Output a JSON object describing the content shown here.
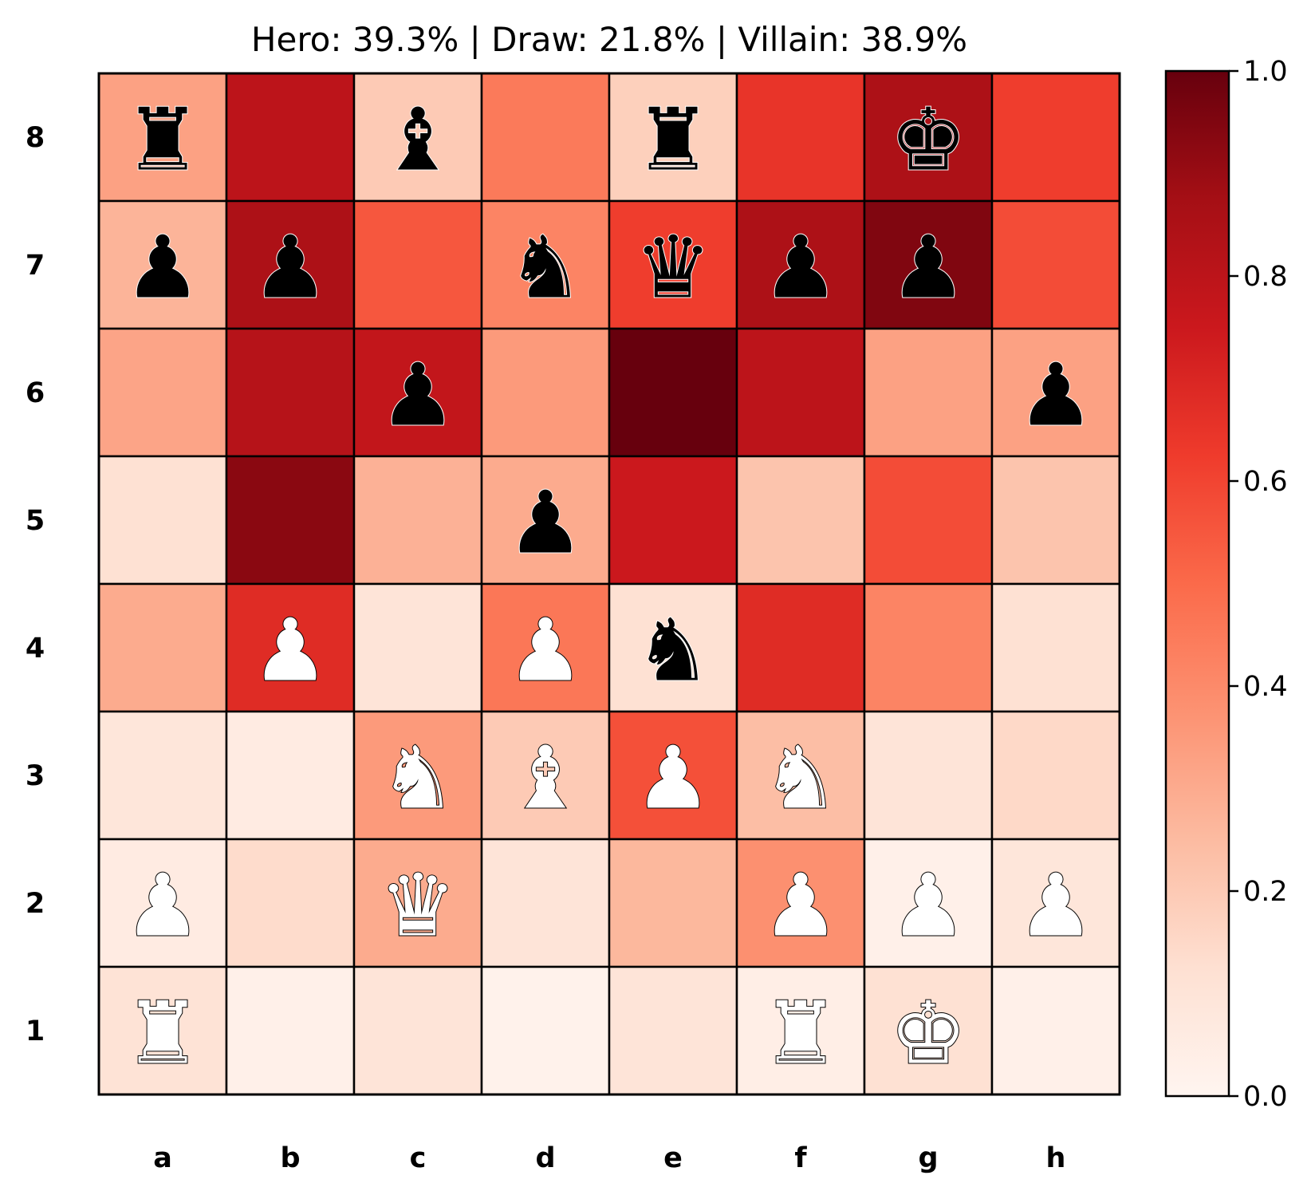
{
  "chart_data": {
    "type": "heatmap",
    "title": "Hero: 39.3% | Draw: 21.8% | Villain: 38.9%",
    "files": [
      "a",
      "b",
      "c",
      "d",
      "e",
      "f",
      "g",
      "h"
    ],
    "ranks": [
      "8",
      "7",
      "6",
      "5",
      "4",
      "3",
      "2",
      "1"
    ],
    "values": [
      [
        0.33,
        0.8,
        0.2,
        0.45,
        0.18,
        0.65,
        0.85,
        0.62
      ],
      [
        0.27,
        0.85,
        0.55,
        0.42,
        0.62,
        0.85,
        0.95,
        0.58
      ],
      [
        0.32,
        0.82,
        0.78,
        0.35,
        1.0,
        0.8,
        0.33,
        0.33
      ],
      [
        0.12,
        0.93,
        0.28,
        0.3,
        0.75,
        0.22,
        0.58,
        0.22
      ],
      [
        0.3,
        0.68,
        0.1,
        0.46,
        0.12,
        0.68,
        0.42,
        0.12
      ],
      [
        0.09,
        0.06,
        0.35,
        0.2,
        0.57,
        0.24,
        0.1,
        0.15
      ],
      [
        0.06,
        0.14,
        0.3,
        0.1,
        0.26,
        0.38,
        0.03,
        0.09
      ],
      [
        0.11,
        0.03,
        0.1,
        0.02,
        0.1,
        0.04,
        0.12,
        0.03
      ]
    ],
    "pieces": [
      [
        "r",
        "",
        "b",
        "",
        "r",
        "",
        "k",
        ""
      ],
      [
        "p",
        "p",
        "",
        "n",
        "q",
        "p",
        "p",
        ""
      ],
      [
        "",
        "",
        "p",
        "",
        "",
        "",
        "",
        "p"
      ],
      [
        "",
        "",
        "",
        "p",
        "",
        "",
        "",
        ""
      ],
      [
        "",
        "P",
        "",
        "P",
        "n",
        "",
        "",
        ""
      ],
      [
        "",
        "",
        "N",
        "B",
        "P",
        "N",
        "",
        ""
      ],
      [
        "P",
        "",
        "Q",
        "",
        "",
        "P",
        "P",
        "P"
      ],
      [
        "R",
        "",
        "",
        "",
        "",
        "R",
        "K",
        ""
      ]
    ],
    "colorbar": {
      "colormap": "Reds",
      "range": [
        0.0,
        1.0
      ],
      "ticks": [
        "0.0",
        "0.2",
        "0.4",
        "0.6",
        "0.8",
        "1.0"
      ]
    }
  }
}
